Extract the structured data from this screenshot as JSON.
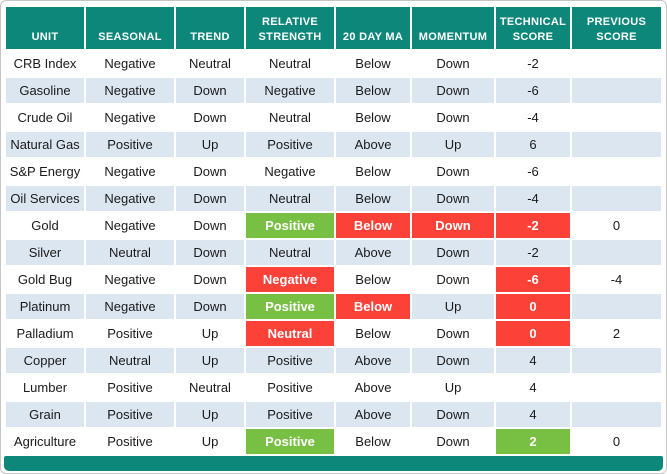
{
  "chart_data": {
    "type": "table",
    "columns": [
      "UNIT",
      "SEASONAL",
      "TREND",
      "RELATIVE STRENGTH",
      "20 DAY MA",
      "MOMENTUM",
      "TECHNICAL SCORE",
      "PREVIOUS SCORE"
    ],
    "rows": [
      {
        "cells": [
          "CRB Index",
          "Negative",
          "Neutral",
          "Neutral",
          "Below",
          "Down",
          "-2",
          ""
        ]
      },
      {
        "cells": [
          "Gasoline",
          "Negative",
          "Down",
          "Negative",
          "Below",
          "Down",
          "-6",
          ""
        ]
      },
      {
        "cells": [
          "Crude Oil",
          "Negative",
          "Down",
          "Neutral",
          "Below",
          "Down",
          "-4",
          ""
        ]
      },
      {
        "cells": [
          "Natural Gas",
          "Positive",
          "Up",
          "Positive",
          "Above",
          "Up",
          "6",
          ""
        ]
      },
      {
        "cells": [
          "S&P Energy",
          "Negative",
          "Down",
          "Negative",
          "Below",
          "Down",
          "-6",
          ""
        ]
      },
      {
        "cells": [
          "Oil Services",
          "Negative",
          "Down",
          "Neutral",
          "Below",
          "Down",
          "-4",
          ""
        ]
      },
      {
        "cells": [
          "Gold",
          "Negative",
          "Down",
          "Positive",
          "Below",
          "Down",
          "-2",
          "0"
        ],
        "highlights": [
          null,
          null,
          null,
          "green",
          "red",
          "red",
          "red",
          null
        ]
      },
      {
        "cells": [
          "Silver",
          "Neutral",
          "Down",
          "Neutral",
          "Above",
          "Down",
          "-2",
          ""
        ]
      },
      {
        "cells": [
          "Gold Bug",
          "Negative",
          "Down",
          "Negative",
          "Below",
          "Down",
          "-6",
          "-4"
        ],
        "highlights": [
          null,
          null,
          null,
          "red",
          null,
          null,
          "red",
          null
        ]
      },
      {
        "cells": [
          "Platinum",
          "Negative",
          "Down",
          "Positive",
          "Below",
          "Up",
          "0",
          ""
        ],
        "highlights": [
          null,
          null,
          null,
          "green",
          "red",
          null,
          "red",
          null
        ]
      },
      {
        "cells": [
          "Palladium",
          "Positive",
          "Up",
          "Neutral",
          "Below",
          "Down",
          "0",
          "2"
        ],
        "highlights": [
          null,
          null,
          null,
          "red",
          null,
          null,
          "red",
          null
        ]
      },
      {
        "cells": [
          "Copper",
          "Neutral",
          "Up",
          "Positive",
          "Above",
          "Down",
          "4",
          ""
        ]
      },
      {
        "cells": [
          "Lumber",
          "Positive",
          "Neutral",
          "Positive",
          "Above",
          "Up",
          "4",
          ""
        ]
      },
      {
        "cells": [
          "Grain",
          "Positive",
          "Up",
          "Positive",
          "Above",
          "Down",
          "4",
          ""
        ]
      },
      {
        "cells": [
          "Agriculture",
          "Positive",
          "Up",
          "Positive",
          "Below",
          "Down",
          "2",
          "0"
        ],
        "highlights": [
          null,
          null,
          null,
          "green",
          null,
          null,
          "green",
          null
        ]
      }
    ]
  },
  "colors": {
    "header_bg": "#0e877b",
    "header_text": "#ffffff",
    "row_alt_bg": "#dce6f1",
    "highlight_red": "#fc4138",
    "highlight_green": "#77c044",
    "text": "#1a1a1a"
  }
}
